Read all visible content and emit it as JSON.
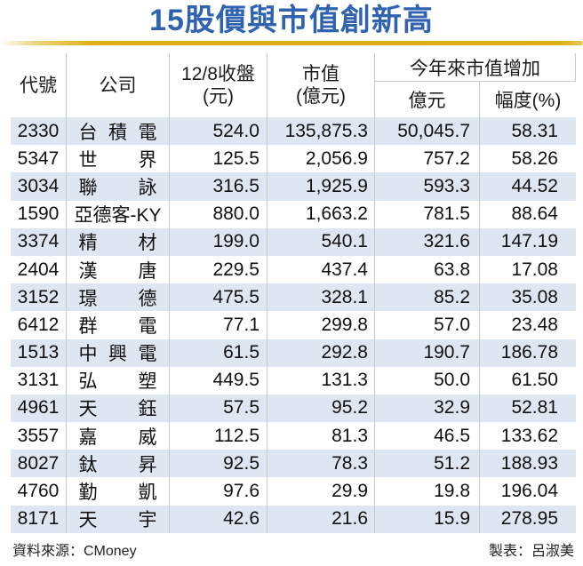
{
  "title": "15股價與市值創新高",
  "colors": {
    "title_blue": "#2f63b0",
    "gold_rule": "#ddb112",
    "row_stripe": "#dee6f2",
    "grid_line": "#c9c9c9"
  },
  "table": {
    "columns": {
      "code": "代號",
      "company": "公司",
      "close_line1": "12/8收盤",
      "close_line2": "(元)",
      "mcap_line1": "市值",
      "mcap_line2": "(億元)",
      "group": "今年來市值增加",
      "group_sub1": "億元",
      "group_sub2": "幅度(%)"
    },
    "rows": [
      {
        "code": "2330",
        "company": "台積電",
        "close": "524.0",
        "mcap": "135,875.3",
        "inc": "50,045.7",
        "pct": "58.31"
      },
      {
        "code": "5347",
        "company": "世界",
        "close": "125.5",
        "mcap": "2,056.9",
        "inc": "757.2",
        "pct": "58.26"
      },
      {
        "code": "3034",
        "company": "聯詠",
        "close": "316.5",
        "mcap": "1,925.9",
        "inc": "593.3",
        "pct": "44.52"
      },
      {
        "code": "1590",
        "company": "亞德客-KY",
        "close": "880.0",
        "mcap": "1,663.2",
        "inc": "781.5",
        "pct": "88.64"
      },
      {
        "code": "3374",
        "company": "精材",
        "close": "199.0",
        "mcap": "540.1",
        "inc": "321.6",
        "pct": "147.19"
      },
      {
        "code": "2404",
        "company": "漢唐",
        "close": "229.5",
        "mcap": "437.4",
        "inc": "63.8",
        "pct": "17.08"
      },
      {
        "code": "3152",
        "company": "璟德",
        "close": "475.5",
        "mcap": "328.1",
        "inc": "85.2",
        "pct": "35.08"
      },
      {
        "code": "6412",
        "company": "群電",
        "close": "77.1",
        "mcap": "299.8",
        "inc": "57.0",
        "pct": "23.48"
      },
      {
        "code": "1513",
        "company": "中興電",
        "close": "61.5",
        "mcap": "292.8",
        "inc": "190.7",
        "pct": "186.78"
      },
      {
        "code": "3131",
        "company": "弘塑",
        "close": "449.5",
        "mcap": "131.3",
        "inc": "50.0",
        "pct": "61.50"
      },
      {
        "code": "4961",
        "company": "天鈺",
        "close": "57.5",
        "mcap": "95.2",
        "inc": "32.9",
        "pct": "52.81"
      },
      {
        "code": "3557",
        "company": "嘉威",
        "close": "112.5",
        "mcap": "81.3",
        "inc": "46.5",
        "pct": "133.62"
      },
      {
        "code": "8027",
        "company": "鈦昇",
        "close": "92.5",
        "mcap": "78.3",
        "inc": "51.2",
        "pct": "188.93"
      },
      {
        "code": "4760",
        "company": "勤凱",
        "close": "97.6",
        "mcap": "29.9",
        "inc": "19.8",
        "pct": "196.04"
      },
      {
        "code": "8171",
        "company": "天宇",
        "close": "42.6",
        "mcap": "21.6",
        "inc": "15.9",
        "pct": "278.95"
      }
    ]
  },
  "footer": {
    "source": "資料來源：CMoney",
    "credit": "製表：呂淑美"
  }
}
